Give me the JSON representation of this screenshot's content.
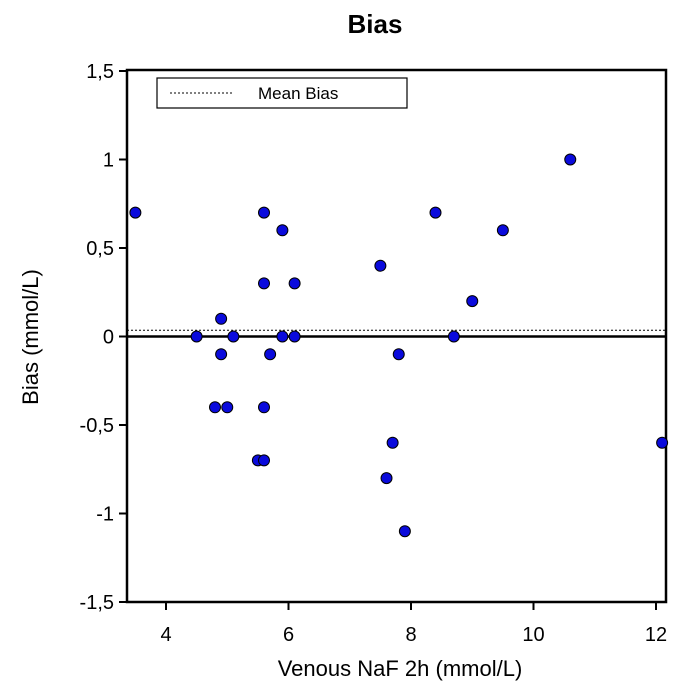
{
  "chart_data": {
    "type": "scatter",
    "title": "Bias",
    "xlabel": "Venous NaF 2h (mmol/L)",
    "ylabel": "Bias (mmol/L)",
    "xlim": [
      3.4,
      12.2
    ],
    "ylim": [
      -1.5,
      1.5
    ],
    "x_ticks": [
      4,
      6,
      8,
      10,
      12
    ],
    "x_tick_labels": [
      "4",
      "6",
      "8",
      "10",
      "12"
    ],
    "y_ticks": [
      1.5,
      1,
      0.5,
      0,
      -0.5,
      -1,
      -1.5
    ],
    "y_tick_labels": [
      "1,5",
      "1",
      "0,5",
      "0",
      "-0,5",
      "-1",
      "-1,5"
    ],
    "mean_bias": 0.035,
    "zero_line": 0,
    "legend": {
      "label": "Mean Bias",
      "placement": "top-left"
    },
    "grid": false,
    "colors": {
      "points": "#0a0adc",
      "point_outline": "#000000",
      "axes": "#000000"
    },
    "points": [
      {
        "x": 3.5,
        "y": 0.7
      },
      {
        "x": 4.5,
        "y": 0.0
      },
      {
        "x": 4.8,
        "y": -0.4
      },
      {
        "x": 4.9,
        "y": 0.1
      },
      {
        "x": 4.9,
        "y": -0.1
      },
      {
        "x": 5.0,
        "y": -0.4
      },
      {
        "x": 5.1,
        "y": 0.0
      },
      {
        "x": 5.5,
        "y": -0.7
      },
      {
        "x": 5.6,
        "y": -0.7
      },
      {
        "x": 5.6,
        "y": 0.7
      },
      {
        "x": 5.6,
        "y": 0.3
      },
      {
        "x": 5.6,
        "y": -0.4
      },
      {
        "x": 5.7,
        "y": -0.1
      },
      {
        "x": 5.9,
        "y": 0.6
      },
      {
        "x": 5.9,
        "y": 0.0
      },
      {
        "x": 6.1,
        "y": 0.3
      },
      {
        "x": 6.1,
        "y": 0.0
      },
      {
        "x": 7.5,
        "y": 0.4
      },
      {
        "x": 7.6,
        "y": -0.8
      },
      {
        "x": 7.7,
        "y": -0.6
      },
      {
        "x": 7.8,
        "y": -0.1
      },
      {
        "x": 7.9,
        "y": -1.1
      },
      {
        "x": 8.4,
        "y": 0.7
      },
      {
        "x": 8.7,
        "y": 0.0
      },
      {
        "x": 9.0,
        "y": 0.2
      },
      {
        "x": 9.5,
        "y": 0.6
      },
      {
        "x": 10.6,
        "y": 1.0
      },
      {
        "x": 12.1,
        "y": -0.6
      }
    ]
  }
}
